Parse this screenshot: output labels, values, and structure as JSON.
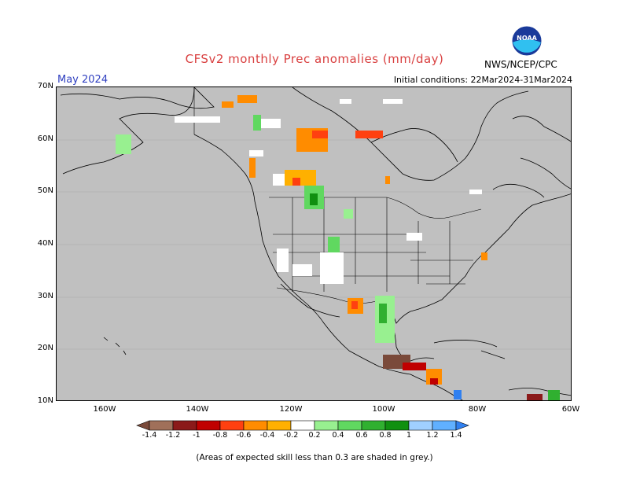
{
  "header": {
    "title": "CFSv2 monthly Prec anomalies (mm/day)",
    "month": "May 2024",
    "initial_conditions": "Initial conditions: 22Mar2024-31Mar2024",
    "agency": "NWS/NCEP/CPC",
    "logo_text": "NOAA"
  },
  "axes": {
    "lat_labels": [
      "70N",
      "60N",
      "50N",
      "40N",
      "30N",
      "20N",
      "10N"
    ],
    "lon_labels": [
      "160W",
      "140W",
      "120W",
      "100W",
      "80W",
      "60W"
    ]
  },
  "colorbar": {
    "labels": [
      "-1.4",
      "-1.2",
      "-1",
      "-0.8",
      "-0.6",
      "-0.4",
      "-0.2",
      "0.2",
      "0.4",
      "0.6",
      "0.8",
      "1",
      "1.2",
      "1.4"
    ],
    "colors": [
      "#7a4a3a",
      "#a0705a",
      "#8b1a1a",
      "#c00000",
      "#ff4010",
      "#ff8c00",
      "#ffb000",
      "#ffffff",
      "#98f090",
      "#60d860",
      "#30b030",
      "#109010",
      "#a0d0ff",
      "#60b0ff",
      "#3080f0"
    ]
  },
  "footer": {
    "note": "(Areas of expected skill less than 0.3 are shaded in grey.)"
  },
  "colors": {
    "map_background": "#c0c0c0",
    "title": "#d94040",
    "month": "#3040c0"
  }
}
